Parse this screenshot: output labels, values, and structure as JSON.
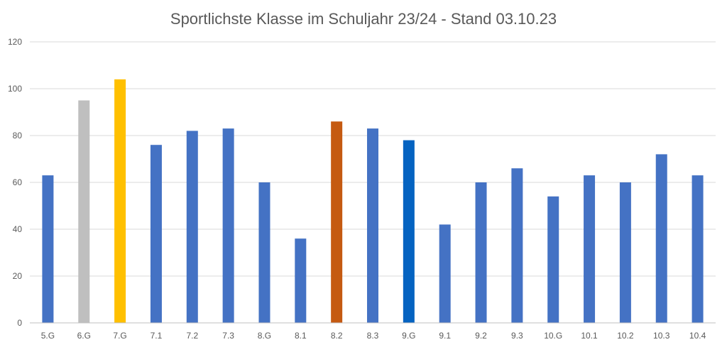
{
  "chart_data": {
    "type": "bar",
    "title": "Sportlichste Klasse im Schuljahr 23/24 - Stand 03.10.23",
    "xlabel": "",
    "ylabel": "",
    "ylim": [
      0,
      120
    ],
    "yticks": [
      0,
      20,
      40,
      60,
      80,
      100,
      120
    ],
    "grid": true,
    "legend": "none",
    "categories": [
      "5.G",
      "6.G",
      "7.G",
      "7.1",
      "7.2",
      "7.3",
      "8.G",
      "8.1",
      "8.2",
      "8.3",
      "9.G",
      "9.1",
      "9.2",
      "9.3",
      "10.G",
      "10.1",
      "10.2",
      "10.3",
      "10.4"
    ],
    "values": [
      63,
      95,
      104,
      76,
      82,
      83,
      60,
      36,
      86,
      83,
      78,
      42,
      60,
      66,
      54,
      63,
      60,
      72,
      63
    ],
    "colors": [
      "#4472c4",
      "#bfbfbf",
      "#ffc000",
      "#4472c4",
      "#4472c4",
      "#4472c4",
      "#4472c4",
      "#4472c4",
      "#c55a11",
      "#4472c4",
      "#0563c1",
      "#4472c4",
      "#4472c4",
      "#4472c4",
      "#4472c4",
      "#4472c4",
      "#4472c4",
      "#4472c4",
      "#4472c4"
    ]
  }
}
